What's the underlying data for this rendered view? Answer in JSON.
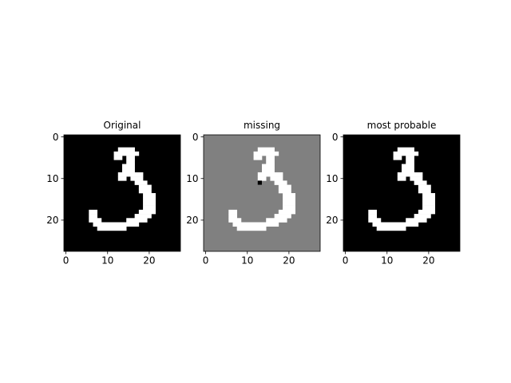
{
  "chart_data": [
    {
      "type": "heatmap",
      "title": "Original",
      "colormap": "gray",
      "rows": 28,
      "cols": 28,
      "xticks": [
        0,
        10,
        20
      ],
      "yticks": [
        0,
        10,
        20
      ],
      "background": 0,
      "missing_value": null,
      "missing_pixels": []
    },
    {
      "type": "heatmap",
      "title": "missing",
      "colormap": "gray",
      "rows": 28,
      "cols": 28,
      "xticks": [
        0,
        10,
        20
      ],
      "yticks": [
        0,
        10,
        20
      ],
      "background": 0.5,
      "missing_value": 0,
      "missing_pixels": [
        [
          11,
          13
        ]
      ]
    },
    {
      "type": "heatmap",
      "title": "most probable",
      "colormap": "gray",
      "rows": 28,
      "cols": 28,
      "xticks": [
        0,
        10,
        20
      ],
      "yticks": [
        0,
        10,
        20
      ],
      "background": 0,
      "missing_value": null,
      "missing_pixels": []
    }
  ],
  "digit_bitmap": [
    [
      3,
      13,
      16
    ],
    [
      4,
      12,
      17
    ],
    [
      5,
      12,
      13
    ],
    [
      5,
      15,
      16
    ],
    [
      6,
      15,
      16
    ],
    [
      7,
      14,
      16
    ],
    [
      8,
      14,
      16
    ],
    [
      9,
      13,
      18
    ],
    [
      10,
      13,
      14
    ],
    [
      10,
      16,
      18
    ],
    [
      11,
      17,
      19
    ],
    [
      12,
      18,
      20
    ],
    [
      13,
      18,
      20
    ],
    [
      14,
      19,
      21
    ],
    [
      15,
      19,
      21
    ],
    [
      16,
      19,
      21
    ],
    [
      17,
      19,
      21
    ],
    [
      18,
      6,
      7
    ],
    [
      18,
      18,
      21
    ],
    [
      19,
      6,
      7
    ],
    [
      19,
      17,
      20
    ],
    [
      20,
      6,
      8
    ],
    [
      20,
      15,
      19
    ],
    [
      21,
      7,
      17
    ],
    [
      22,
      8,
      14
    ]
  ]
}
